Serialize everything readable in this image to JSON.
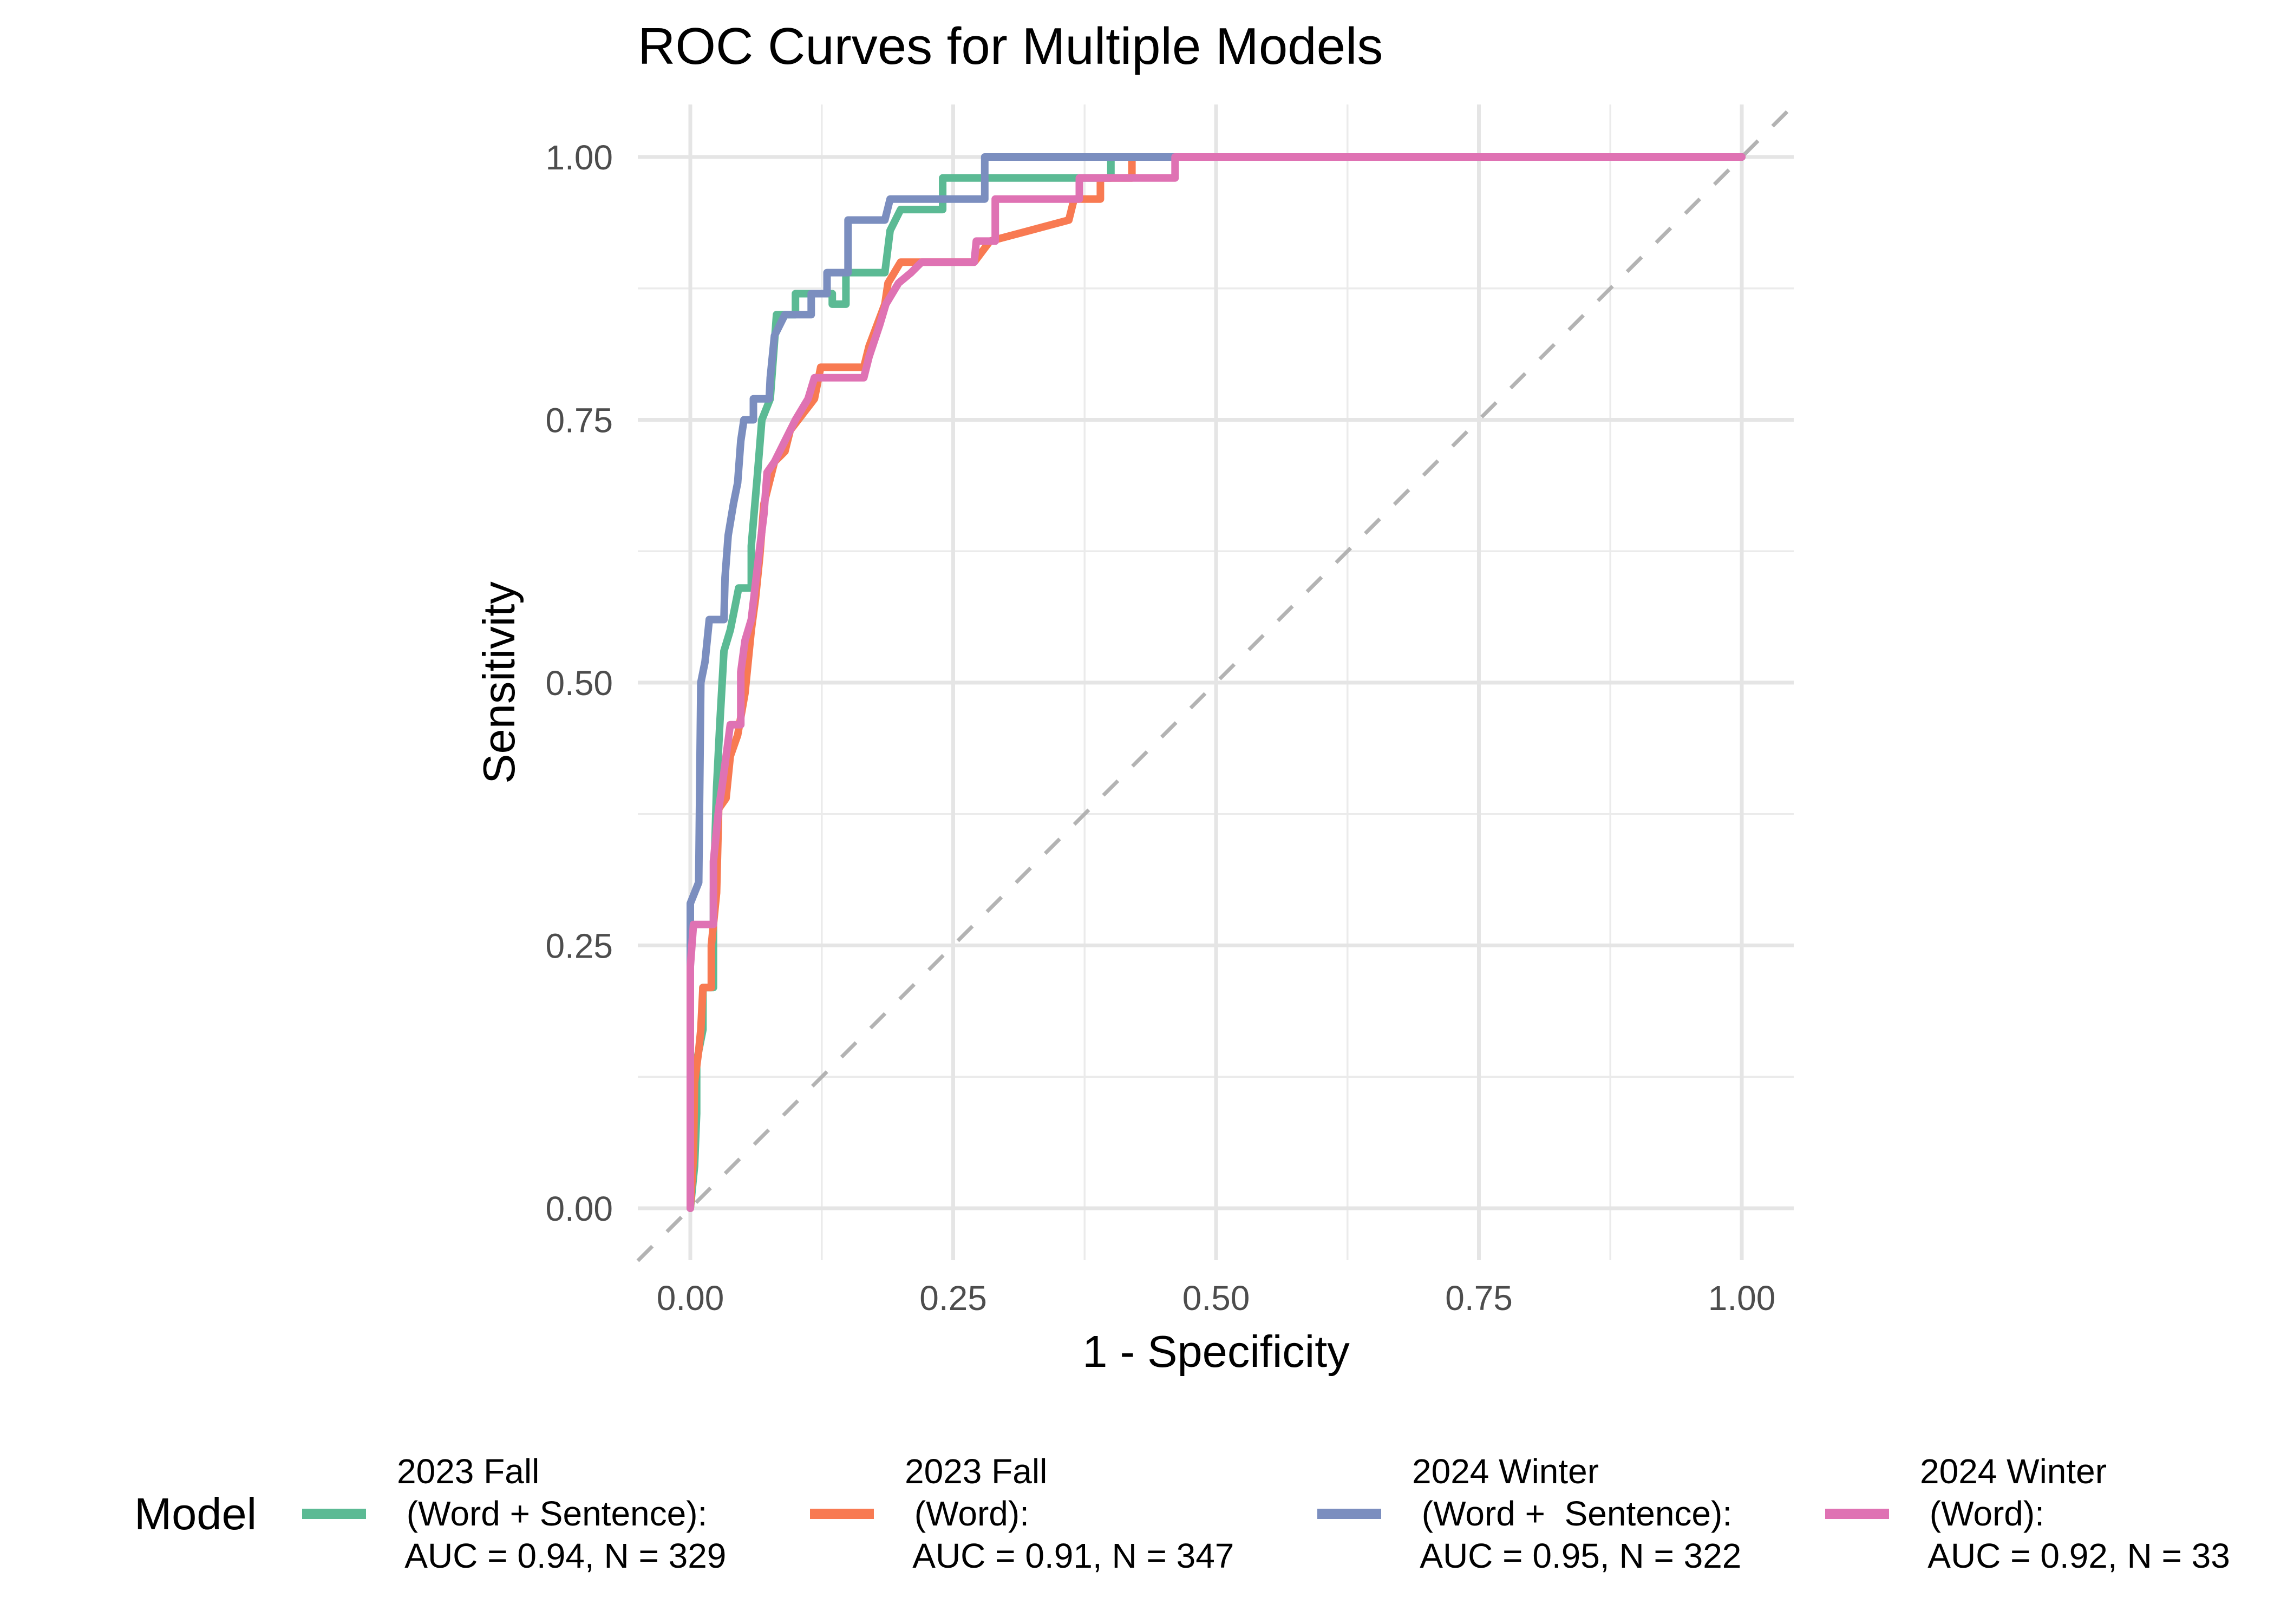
{
  "chart_data": {
    "type": "line",
    "title": "ROC Curves for Multiple Models",
    "xlabel": "1 - Specificity",
    "ylabel": "Sensitivity",
    "xlim": [
      -0.05,
      1.05
    ],
    "ylim": [
      -0.05,
      1.05
    ],
    "x_ticks": [
      0,
      0.25,
      0.5,
      0.75,
      1.0
    ],
    "x_tick_labels": [
      "0.00",
      "0.25",
      "0.50",
      "0.75",
      "1.00"
    ],
    "y_ticks": [
      0,
      0.25,
      0.5,
      0.75,
      1.0
    ],
    "y_tick_labels": [
      "0.00",
      "0.25",
      "0.50",
      "0.75",
      "1.00"
    ],
    "grid": true,
    "legend": {
      "title": "Model",
      "position": "bottom"
    },
    "reference_line": {
      "from": [
        0,
        0
      ],
      "to": [
        1,
        1
      ],
      "style": "dashed",
      "color": "#b3b3b3"
    },
    "series": [
      {
        "name": "2023 Fall (Word + Sentence)",
        "label_lines": [
          "2023 Fall",
          " (Word + Sentence):",
          " AUC = 0.94, N = 329"
        ],
        "auc": 0.94,
        "n": 329,
        "color": "#5bba94",
        "points": [
          [
            0,
            0
          ],
          [
            0.004,
            0.04
          ],
          [
            0.006,
            0.09
          ],
          [
            0.006,
            0.14
          ],
          [
            0.012,
            0.17
          ],
          [
            0.012,
            0.21
          ],
          [
            0.022,
            0.21
          ],
          [
            0.022,
            0.3
          ],
          [
            0.025,
            0.4
          ],
          [
            0.028,
            0.46
          ],
          [
            0.032,
            0.53
          ],
          [
            0.038,
            0.55
          ],
          [
            0.042,
            0.57
          ],
          [
            0.046,
            0.59
          ],
          [
            0.058,
            0.59
          ],
          [
            0.058,
            0.63
          ],
          [
            0.064,
            0.7
          ],
          [
            0.068,
            0.75
          ],
          [
            0.076,
            0.77
          ],
          [
            0.082,
            0.85
          ],
          [
            0.1,
            0.85
          ],
          [
            0.1,
            0.87
          ],
          [
            0.135,
            0.87
          ],
          [
            0.135,
            0.86
          ],
          [
            0.148,
            0.86
          ],
          [
            0.148,
            0.89
          ],
          [
            0.185,
            0.89
          ],
          [
            0.19,
            0.93
          ],
          [
            0.2,
            0.95
          ],
          [
            0.24,
            0.95
          ],
          [
            0.24,
            0.98
          ],
          [
            0.4,
            0.98
          ],
          [
            0.4,
            1.0
          ],
          [
            1.0,
            1.0
          ]
        ]
      },
      {
        "name": "2023 Fall (Word)",
        "label_lines": [
          "2023 Fall",
          " (Word):",
          " AUC = 0.91, N = 347"
        ],
        "auc": 0.91,
        "n": 347,
        "color": "#f87a52",
        "points": [
          [
            0,
            0
          ],
          [
            0.003,
            0.05
          ],
          [
            0.004,
            0.12
          ],
          [
            0.008,
            0.15
          ],
          [
            0.01,
            0.17
          ],
          [
            0.012,
            0.21
          ],
          [
            0.02,
            0.21
          ],
          [
            0.02,
            0.25
          ],
          [
            0.025,
            0.3
          ],
          [
            0.027,
            0.38
          ],
          [
            0.034,
            0.39
          ],
          [
            0.038,
            0.43
          ],
          [
            0.045,
            0.45
          ],
          [
            0.052,
            0.49
          ],
          [
            0.058,
            0.55
          ],
          [
            0.062,
            0.58
          ],
          [
            0.066,
            0.62
          ],
          [
            0.07,
            0.67
          ],
          [
            0.08,
            0.71
          ],
          [
            0.09,
            0.72
          ],
          [
            0.095,
            0.74
          ],
          [
            0.118,
            0.77
          ],
          [
            0.124,
            0.8
          ],
          [
            0.165,
            0.8
          ],
          [
            0.17,
            0.82
          ],
          [
            0.185,
            0.86
          ],
          [
            0.188,
            0.88
          ],
          [
            0.2,
            0.9
          ],
          [
            0.27,
            0.9
          ],
          [
            0.285,
            0.92
          ],
          [
            0.36,
            0.94
          ],
          [
            0.365,
            0.96
          ],
          [
            0.39,
            0.96
          ],
          [
            0.39,
            0.98
          ],
          [
            0.42,
            0.98
          ],
          [
            0.42,
            1.0
          ],
          [
            1.0,
            1.0
          ]
        ]
      },
      {
        "name": "2024 Winter (Word + Sentence)",
        "label_lines": [
          "2024 Winter",
          " (Word +  Sentence):",
          " AUC = 0.95, N = 322"
        ],
        "auc": 0.95,
        "n": 322,
        "color": "#7b8ebf",
        "points": [
          [
            0,
            0
          ],
          [
            0,
            0.29
          ],
          [
            0.008,
            0.31
          ],
          [
            0.01,
            0.5
          ],
          [
            0.014,
            0.52
          ],
          [
            0.018,
            0.56
          ],
          [
            0.032,
            0.56
          ],
          [
            0.033,
            0.6
          ],
          [
            0.036,
            0.64
          ],
          [
            0.041,
            0.67
          ],
          [
            0.045,
            0.69
          ],
          [
            0.048,
            0.73
          ],
          [
            0.051,
            0.75
          ],
          [
            0.06,
            0.75
          ],
          [
            0.06,
            0.77
          ],
          [
            0.075,
            0.77
          ],
          [
            0.076,
            0.79
          ],
          [
            0.08,
            0.83
          ],
          [
            0.09,
            0.85
          ],
          [
            0.115,
            0.85
          ],
          [
            0.115,
            0.87
          ],
          [
            0.13,
            0.87
          ],
          [
            0.13,
            0.89
          ],
          [
            0.15,
            0.89
          ],
          [
            0.15,
            0.94
          ],
          [
            0.185,
            0.94
          ],
          [
            0.19,
            0.96
          ],
          [
            0.28,
            0.96
          ],
          [
            0.28,
            1.0
          ],
          [
            1.0,
            1.0
          ]
        ]
      },
      {
        "name": "2024 Winter (Word)",
        "label_lines": [
          "2024 Winter",
          " (Word):",
          " AUC = 0.92, N = 33"
        ],
        "auc": 0.92,
        "n": 33,
        "color": "#df72b3",
        "points": [
          [
            0,
            0
          ],
          [
            0,
            0.23
          ],
          [
            0.003,
            0.27
          ],
          [
            0.022,
            0.27
          ],
          [
            0.022,
            0.33
          ],
          [
            0.027,
            0.38
          ],
          [
            0.03,
            0.4
          ],
          [
            0.038,
            0.46
          ],
          [
            0.048,
            0.46
          ],
          [
            0.048,
            0.51
          ],
          [
            0.052,
            0.54
          ],
          [
            0.058,
            0.56
          ],
          [
            0.065,
            0.62
          ],
          [
            0.07,
            0.66
          ],
          [
            0.073,
            0.7
          ],
          [
            0.08,
            0.71
          ],
          [
            0.09,
            0.73
          ],
          [
            0.1,
            0.75
          ],
          [
            0.112,
            0.77
          ],
          [
            0.118,
            0.79
          ],
          [
            0.165,
            0.79
          ],
          [
            0.17,
            0.81
          ],
          [
            0.18,
            0.84
          ],
          [
            0.186,
            0.86
          ],
          [
            0.198,
            0.88
          ],
          [
            0.21,
            0.89
          ],
          [
            0.22,
            0.9
          ],
          [
            0.27,
            0.9
          ],
          [
            0.272,
            0.92
          ],
          [
            0.29,
            0.92
          ],
          [
            0.29,
            0.96
          ],
          [
            0.37,
            0.96
          ],
          [
            0.37,
            0.98
          ],
          [
            0.461,
            0.98
          ],
          [
            0.461,
            1.0
          ],
          [
            1.0,
            1.0
          ]
        ]
      }
    ]
  }
}
